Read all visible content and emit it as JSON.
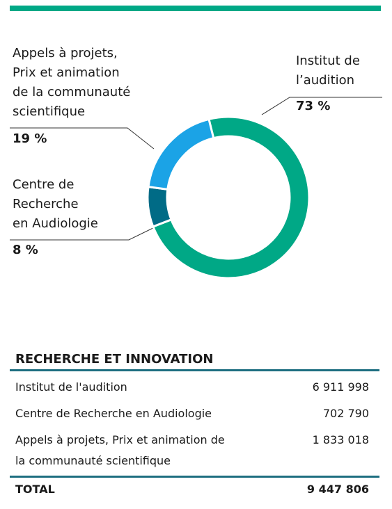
{
  "chart_data": {
    "type": "pie",
    "categories": [
      [
        "Institut de",
        "l’audition"
      ],
      [
        "Centre de",
        "Recherche",
        "en Audiologie"
      ],
      [
        "Appels à projets,",
        "Prix et animation",
        "de la communauté",
        "scientifique"
      ]
    ],
    "values": [
      73,
      8,
      19
    ],
    "value_labels": [
      "73 %",
      "8 %",
      "19 %"
    ],
    "colors": [
      "#00a886",
      "#006b86",
      "#1ba3e6"
    ]
  },
  "table": {
    "title": "RECHERCHE ET INNOVATION",
    "rows": [
      [
        "Institut de l'audition",
        "6 911 998"
      ],
      [
        "Centre de Recherche en Audiologie",
        "702 790"
      ],
      [
        "Appels à projets, Prix et animation de la communauté scientifique",
        "1 833 018"
      ]
    ],
    "total": [
      "TOTAL",
      "9 447 806"
    ]
  }
}
